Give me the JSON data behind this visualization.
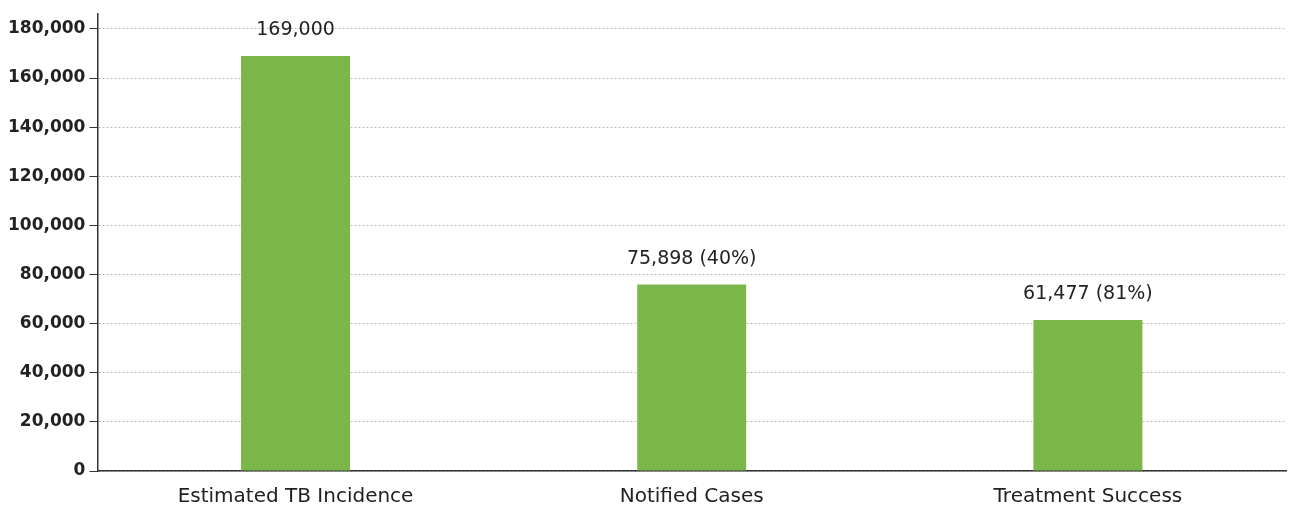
{
  "chart_data": {
    "type": "bar",
    "categories": [
      "Estimated TB Incidence",
      "Notified Cases",
      "Treatment Success"
    ],
    "values": [
      169000,
      75898,
      61477
    ],
    "value_labels": [
      "169,000",
      "75,898 (40%)",
      "61,477 (81%)"
    ],
    "color": "#7ab648",
    "ylim": [
      0,
      186000
    ],
    "yticks": [
      {
        "value": 0,
        "label": "0"
      },
      {
        "value": 20000,
        "label": "20,000"
      },
      {
        "value": 40000,
        "label": "40,000"
      },
      {
        "value": 60000,
        "label": "60,000"
      },
      {
        "value": 80000,
        "label": "80,000"
      },
      {
        "value": 100000,
        "label": "100,000"
      },
      {
        "value": 120000,
        "label": "120,000"
      },
      {
        "value": 140000,
        "label": "140,000"
      },
      {
        "value": 160000,
        "label": "160,000"
      },
      {
        "value": 180000,
        "label": "180,000"
      }
    ],
    "grid": "y",
    "legend": false
  }
}
